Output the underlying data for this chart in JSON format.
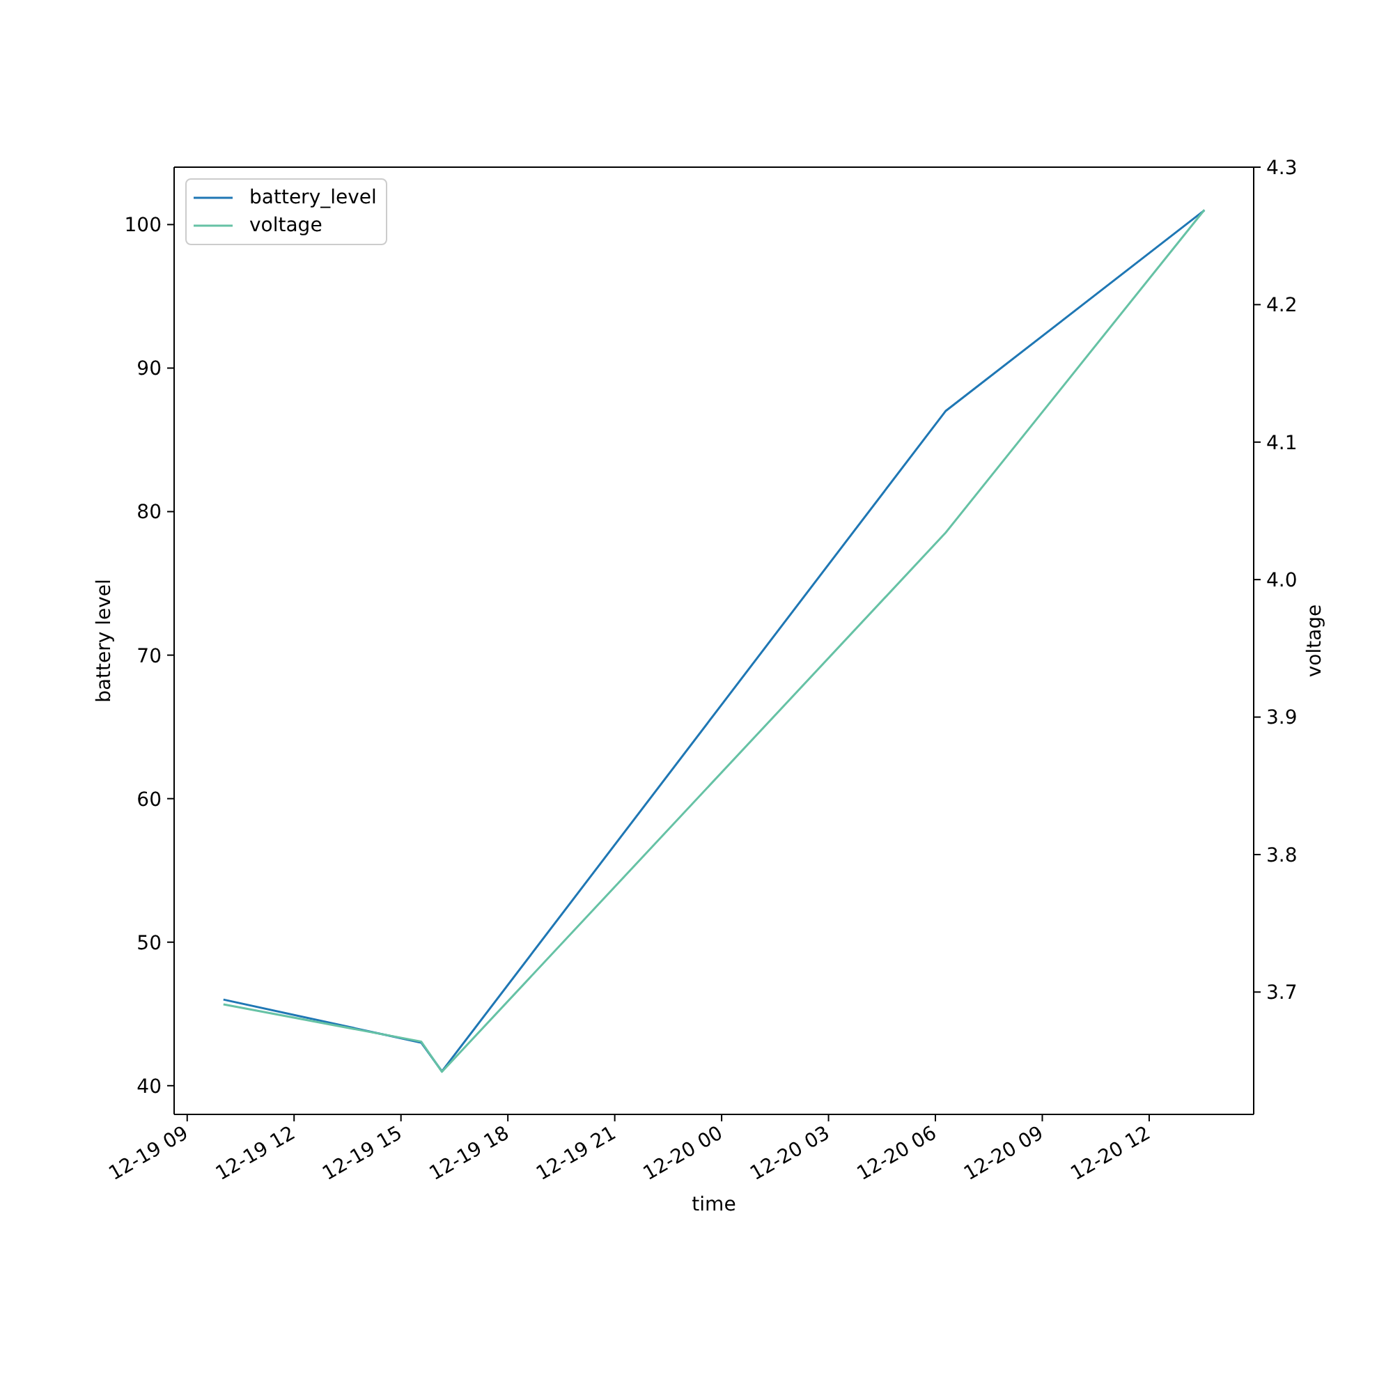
{
  "chart_data": {
    "type": "line",
    "xlabel": "time",
    "ylabel": "battery level",
    "y2label": "voltage",
    "x": [
      "--12-19T10:01",
      "--12-19T15:34",
      "--12-19T16:09",
      "--12-20T06:17",
      "--12-20T13:33"
    ],
    "series": [
      {
        "name": "battery_level",
        "color": "#1f77b4",
        "values": [
          46,
          43,
          41,
          87,
          101
        ]
      },
      {
        "name": "voltage",
        "color": "#66c2a5",
        "axis": "y2",
        "values": [
          3.691,
          3.664,
          3.642,
          4.034,
          4.269
        ]
      }
    ],
    "xlim": [
      "--12-19T08:38",
      "--12-20T14:56"
    ],
    "xticks": [
      {
        "value": "--12-19T09:00",
        "label": "12-19 09"
      },
      {
        "value": "--12-19T12:00",
        "label": "12-19 12"
      },
      {
        "value": "--12-19T15:00",
        "label": "12-19 15"
      },
      {
        "value": "--12-19T18:00",
        "label": "12-19 18"
      },
      {
        "value": "--12-19T21:00",
        "label": "12-19 21"
      },
      {
        "value": "--12-20T00:00",
        "label": "12-20 00"
      },
      {
        "value": "--12-20T03:00",
        "label": "12-20 03"
      },
      {
        "value": "--12-20T06:00",
        "label": "12-20 06"
      },
      {
        "value": "--12-20T09:00",
        "label": "12-20 09"
      },
      {
        "value": "--12-20T12:00",
        "label": "12-20 12"
      }
    ],
    "ylim": [
      38,
      104
    ],
    "yticks": [
      40,
      50,
      60,
      70,
      80,
      90,
      100
    ],
    "y2lim": [
      3.611,
      4.3
    ],
    "y2ticks": [
      3.7,
      3.8,
      3.9,
      {
        "value": 4,
        "label": "4.0"
      },
      4.1,
      4.2,
      4.3
    ],
    "legend": "top left"
  }
}
